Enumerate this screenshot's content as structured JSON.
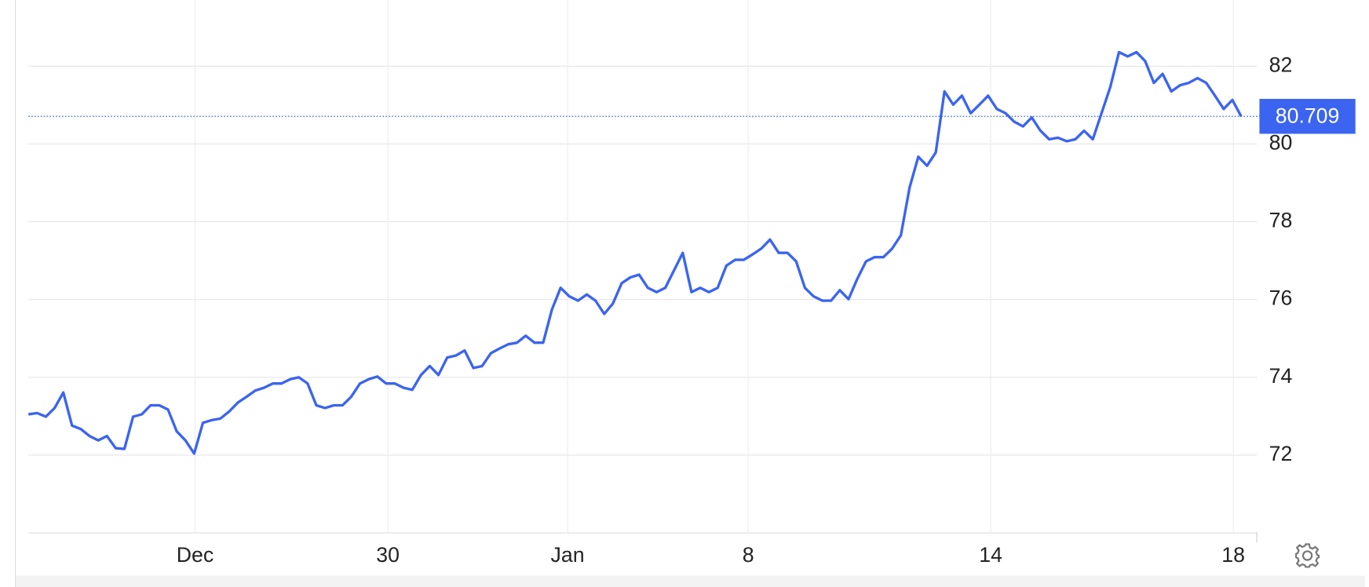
{
  "chart_data": {
    "type": "line",
    "series": [
      {
        "color": "#3b64f0",
        "values": [
          73.05,
          73.08,
          72.99,
          73.21,
          73.61,
          72.76,
          72.67,
          72.49,
          72.38,
          72.49,
          72.18,
          72.16,
          72.99,
          73.05,
          73.28,
          73.28,
          73.17,
          72.61,
          72.38,
          72.04,
          72.83,
          72.9,
          72.94,
          73.12,
          73.35,
          73.5,
          73.66,
          73.73,
          73.84,
          73.84,
          73.95,
          74.0,
          73.84,
          73.28,
          73.21,
          73.28,
          73.28,
          73.5,
          73.84,
          73.95,
          74.02,
          73.84,
          73.84,
          73.73,
          73.68,
          74.06,
          74.29,
          74.06,
          74.51,
          74.56,
          74.69,
          74.24,
          74.29,
          74.62,
          74.74,
          74.85,
          74.89,
          75.07,
          74.89,
          74.89,
          75.74,
          76.3,
          76.08,
          75.97,
          76.13,
          75.97,
          75.63,
          75.9,
          76.42,
          76.57,
          76.64,
          76.3,
          76.19,
          76.3,
          76.75,
          77.2,
          76.19,
          76.3,
          76.19,
          76.3,
          76.87,
          77.02,
          77.02,
          77.16,
          77.31,
          77.54,
          77.2,
          77.2,
          76.98,
          76.3,
          76.08,
          75.97,
          75.97,
          76.24,
          76.01,
          76.53,
          76.98,
          77.09,
          77.09,
          77.31,
          77.65,
          78.88,
          79.67,
          79.44,
          79.78,
          81.35,
          81.01,
          81.24,
          80.79,
          81.01,
          81.24,
          80.9,
          80.79,
          80.57,
          80.45,
          80.68,
          80.34,
          80.12,
          80.16,
          80.07,
          80.12,
          80.34,
          80.12,
          80.79,
          81.46,
          82.36,
          82.25,
          82.36,
          82.13,
          81.57,
          81.8,
          81.35,
          81.51,
          81.57,
          81.69,
          81.57,
          81.24,
          80.9,
          81.13,
          80.71
        ]
      }
    ],
    "xlim": [
      0,
      139
    ],
    "xticks": [
      {
        "value": 19.1,
        "label": "Dec"
      },
      {
        "value": 41.2,
        "label": "30"
      },
      {
        "value": 61.8,
        "label": "Jan"
      },
      {
        "value": 82.5,
        "label": "8"
      },
      {
        "value": 110.3,
        "label": "14"
      },
      {
        "value": 138.1,
        "label": "18"
      }
    ],
    "ylim": [
      70,
      83.7
    ],
    "yticks": [
      72,
      74,
      76,
      78,
      80,
      82
    ],
    "grid": true,
    "last_value": {
      "value": 80.709,
      "label": "80.709"
    },
    "last_value_color": "#3b64f0"
  }
}
